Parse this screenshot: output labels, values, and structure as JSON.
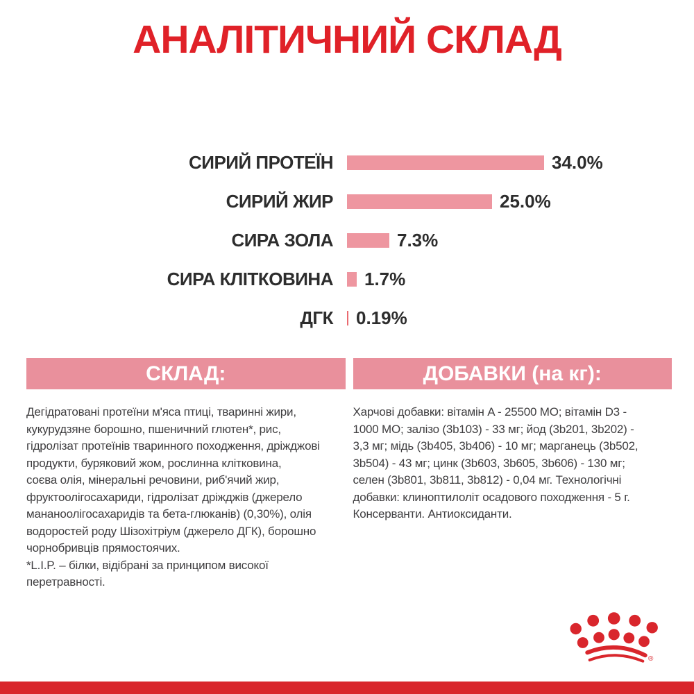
{
  "page": {
    "title": "АНАЛІТИЧНИЙ СКЛАД"
  },
  "chart_data": {
    "type": "bar",
    "orientation": "horizontal",
    "title": "АНАЛІТИЧНИЙ СКЛАД",
    "categories": [
      "СИРИЙ ПРОТЕЇН",
      "СИРИЙ ЖИР",
      "СИРА ЗОЛА",
      "СИРА КЛІТКОВИНА",
      "ДГК"
    ],
    "values": [
      34.0,
      25.0,
      7.3,
      1.7,
      0.19
    ],
    "value_labels": [
      "34.0%",
      "25.0%",
      "7.3%",
      "1.7%",
      "0.19%"
    ],
    "xlim": [
      0,
      34
    ],
    "grid": false,
    "legend": false,
    "bar_color": "#ee96a0",
    "thin_bar_color": "#ea6a70",
    "label_color": "#2d2d2d"
  },
  "sections": {
    "composition": {
      "heading": "СКЛАД:",
      "body_lines": [
        "Дегідратовані протеїни м'яса птиці, тваринні жири,",
        "кукурудзяне борошно, пшеничний глютен*, рис,",
        "гідролізат протеїнів тваринного походження, дріжджові",
        "продукти, буряковий жом, рослинна клітковина,",
        "соєва олія, мінеральні речовини, риб'ячий жир,",
        "фруктоолігосахариди, гідролізат дріжджів (джерело",
        "мананоолігосахаридів та бета-глюканів) (0,30%), олія",
        "водоростей роду Шізохітріум (джерело ДГК), борошно",
        "чорнобривців прямостоячих.",
        "*L.I.P. – білки, відібрані за принципом високої",
        "перетравності."
      ]
    },
    "additives": {
      "heading": "ДОБАВКИ (на кг):",
      "body_lines": [
        "Харчові добавки: вітамін A - 25500 МО; вітамін D3 -",
        "1000 МО; залізо (3b103) - 33 мг; йод (3b201, 3b202) -",
        "3,3 мг; мідь (3b405, 3b406) - 10 мг; марганець (3b502,",
        "3b504) - 43 мг; цинк (3b603, 3b605, 3b606) - 130 мг;",
        "селен (3b801, 3b811, 3b812) - 0,04 мг. Технологічні",
        "добавки: клиноптилоліт осадового походження - 5 г.",
        "Консерванти. Антиоксиданти."
      ]
    }
  },
  "footer": {
    "brand_logo": "royal-canin-crown",
    "registered_mark": "®",
    "crown_color": "#d9262c",
    "bar_color": "#d9262c"
  },
  "colors": {
    "title_red": "#e02128",
    "band_pink": "#e9909c",
    "bar_pink": "#ee96a0",
    "body_text": "#3f3e40",
    "background": "#ffffff"
  }
}
